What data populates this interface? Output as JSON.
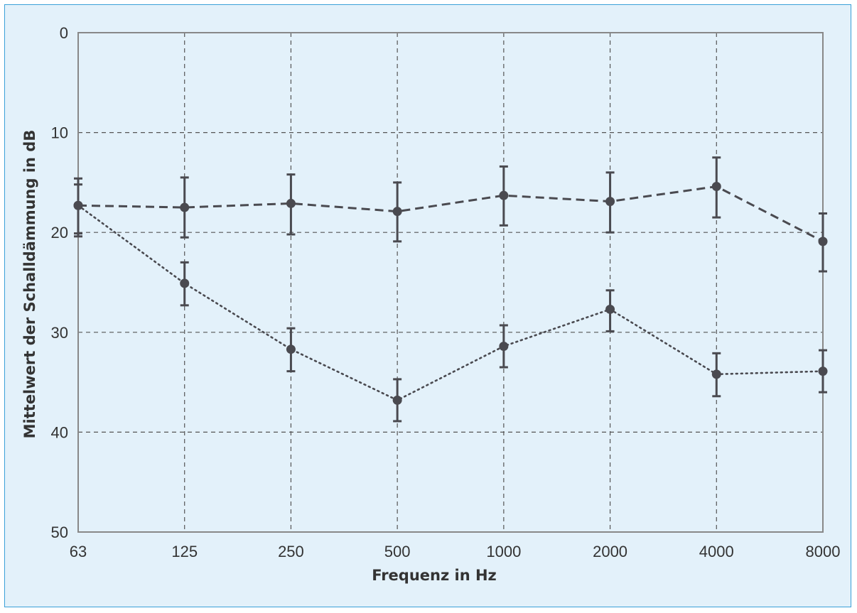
{
  "chart_data": {
    "type": "line",
    "title": "",
    "xlabel": "Frequenz in Hz",
    "ylabel": "Mittelwert der Schalldämmung in dB",
    "x_categories": [
      "63",
      "125",
      "250",
      "500",
      "1000",
      "2000",
      "4000",
      "8000"
    ],
    "y_ticks": [
      "0",
      "10",
      "20",
      "30",
      "40",
      "50"
    ],
    "ylim": [
      0,
      50
    ],
    "y_inverted": true,
    "grid": true,
    "legend": "none",
    "series": [
      {
        "line_style": "dashed",
        "values": [
          17.3,
          17.5,
          17.1,
          17.9,
          16.3,
          16.9,
          15.4,
          20.9
        ],
        "error_low": [
          15.2,
          14.5,
          14.2,
          15.0,
          13.4,
          14.0,
          12.5,
          18.1
        ],
        "error_high": [
          20.4,
          20.5,
          20.2,
          20.9,
          19.3,
          20.0,
          18.5,
          23.9
        ]
      },
      {
        "line_style": "dotted",
        "values": [
          17.3,
          25.1,
          31.7,
          36.8,
          31.4,
          27.7,
          34.2,
          33.9
        ],
        "error_low": [
          14.6,
          23.0,
          29.6,
          34.7,
          29.3,
          25.8,
          32.1,
          31.8
        ],
        "error_high": [
          20.1,
          27.3,
          33.9,
          38.9,
          33.5,
          29.9,
          36.4,
          36.0
        ]
      }
    ],
    "colors": {
      "line": "#4a4a50",
      "grid": "#555555",
      "axis": "#888888",
      "background": "#e3f1fa",
      "frame": "#3aa0d8"
    }
  }
}
